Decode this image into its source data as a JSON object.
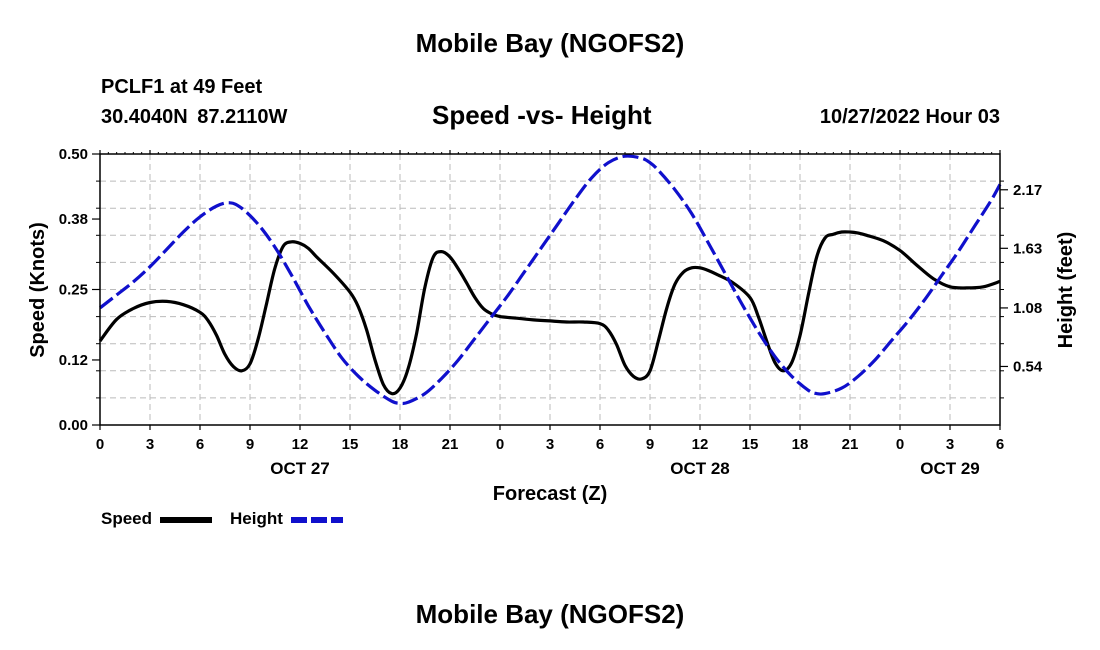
{
  "header": {
    "title": "Mobile Bay (NGOFS2)",
    "station": "PCLF1 at 49 Feet",
    "coordinates": "30.4040N 87.2110W",
    "subtitle": "Speed -vs- Height",
    "timestamp": "10/27/2022 Hour 03"
  },
  "footer": {
    "title": "Mobile Bay (NGOFS2)"
  },
  "legend": {
    "speed_label": "Speed",
    "height_label": "Height"
  },
  "colors": {
    "speed": "#000000",
    "height": "#1010cc",
    "grid": "#bbbbbb"
  },
  "chart_data": {
    "type": "line",
    "title": "Speed -vs- Height",
    "xlabel": "Forecast (Z)",
    "ylabel": "Speed (Knots)",
    "y2label": "Height (feet)",
    "xlim": [
      0,
      54
    ],
    "ylim": [
      0,
      0.5
    ],
    "y2lim": [
      0.0,
      2.5
    ],
    "x_ticks": [
      0,
      3,
      6,
      9,
      12,
      15,
      18,
      21,
      24,
      27,
      30,
      33,
      36,
      39,
      42,
      45,
      48,
      51,
      54
    ],
    "x_tick_labels": [
      "0",
      "3",
      "6",
      "9",
      "12",
      "15",
      "18",
      "21",
      "0",
      "3",
      "6",
      "9",
      "12",
      "15",
      "18",
      "21",
      "0",
      "3",
      "6"
    ],
    "day_labels": [
      {
        "x": 12,
        "label": "OCT 27"
      },
      {
        "x": 36,
        "label": "OCT 28"
      },
      {
        "x": 51,
        "label": "OCT 29"
      }
    ],
    "y_ticks": [
      0.0,
      0.12,
      0.25,
      0.38,
      0.5
    ],
    "y_tick_labels": [
      "0.00",
      "0.12",
      "0.25",
      "0.38",
      "0.50"
    ],
    "y2_ticks": [
      0.54,
      1.08,
      1.63,
      2.17
    ],
    "y2_tick_labels": [
      "0.54",
      "1.08",
      "1.63",
      "2.17"
    ],
    "grid": true,
    "series": [
      {
        "name": "Speed",
        "axis": "left",
        "style": "solid",
        "x": [
          0,
          1,
          2,
          3,
          4,
          5,
          6,
          6.5,
          7,
          7.5,
          8,
          8.5,
          9,
          9.5,
          10,
          10.5,
          11,
          11.5,
          12,
          12.5,
          13,
          14,
          15,
          15.5,
          16,
          16.5,
          17,
          17.5,
          18,
          18.5,
          19,
          19.5,
          20,
          20.5,
          21,
          21.5,
          22,
          22.5,
          23,
          23.5,
          24,
          25,
          26,
          27,
          28,
          29,
          30,
          30.5,
          31,
          31.5,
          32,
          32.5,
          33,
          33.5,
          34,
          34.5,
          35,
          35.5,
          36,
          36.5,
          37,
          38,
          39,
          39.5,
          40,
          40.5,
          41,
          41.5,
          42,
          42.5,
          43,
          43.5,
          44,
          44.5,
          45,
          45.5,
          46,
          47,
          48,
          49,
          50,
          51,
          52,
          53,
          54
        ],
        "values": [
          0.155,
          0.195,
          0.215,
          0.226,
          0.228,
          0.222,
          0.208,
          0.192,
          0.165,
          0.13,
          0.108,
          0.1,
          0.113,
          0.16,
          0.225,
          0.29,
          0.33,
          0.338,
          0.335,
          0.326,
          0.31,
          0.28,
          0.245,
          0.218,
          0.175,
          0.12,
          0.075,
          0.058,
          0.068,
          0.105,
          0.17,
          0.255,
          0.31,
          0.32,
          0.31,
          0.288,
          0.262,
          0.235,
          0.215,
          0.205,
          0.2,
          0.197,
          0.194,
          0.192,
          0.19,
          0.19,
          0.187,
          0.175,
          0.148,
          0.11,
          0.09,
          0.085,
          0.1,
          0.155,
          0.215,
          0.26,
          0.282,
          0.29,
          0.29,
          0.285,
          0.278,
          0.262,
          0.235,
          0.2,
          0.155,
          0.115,
          0.1,
          0.115,
          0.165,
          0.24,
          0.31,
          0.345,
          0.352,
          0.356,
          0.356,
          0.354,
          0.35,
          0.34,
          0.322,
          0.295,
          0.27,
          0.255,
          0.253,
          0.255,
          0.265
        ]
      },
      {
        "name": "Height",
        "axis": "right",
        "style": "dashed",
        "x": [
          0,
          1,
          2,
          3,
          4,
          5,
          6,
          7,
          7.8,
          8.5,
          9.5,
          10.5,
          11.5,
          12.5,
          13.5,
          14.5,
          15.5,
          16.5,
          17.5,
          18,
          18.5,
          19.5,
          20.5,
          21.5,
          22.5,
          23.5,
          24.5,
          25.5,
          26.5,
          27.5,
          28.5,
          29.5,
          30.5,
          31.5,
          32.5,
          33,
          33.5,
          34.5,
          35.5,
          36.5,
          37.5,
          38.5,
          39.5,
          40.5,
          41.5,
          42.5,
          43,
          43.5,
          44.5,
          45.5,
          46.5,
          47.5,
          48.5,
          49.5,
          50.5,
          51.5,
          52.5,
          53.5,
          54
        ],
        "values": [
          1.08,
          1.2,
          1.32,
          1.46,
          1.62,
          1.78,
          1.92,
          2.02,
          2.05,
          2.0,
          1.85,
          1.64,
          1.38,
          1.1,
          0.85,
          0.62,
          0.45,
          0.32,
          0.22,
          0.2,
          0.21,
          0.29,
          0.43,
          0.6,
          0.8,
          1.0,
          1.2,
          1.42,
          1.64,
          1.86,
          2.08,
          2.28,
          2.42,
          2.48,
          2.46,
          2.42,
          2.35,
          2.17,
          1.95,
          1.68,
          1.4,
          1.12,
          0.86,
          0.63,
          0.45,
          0.32,
          0.29,
          0.29,
          0.34,
          0.45,
          0.6,
          0.78,
          0.96,
          1.16,
          1.38,
          1.6,
          1.84,
          2.08,
          2.22
        ]
      }
    ]
  }
}
